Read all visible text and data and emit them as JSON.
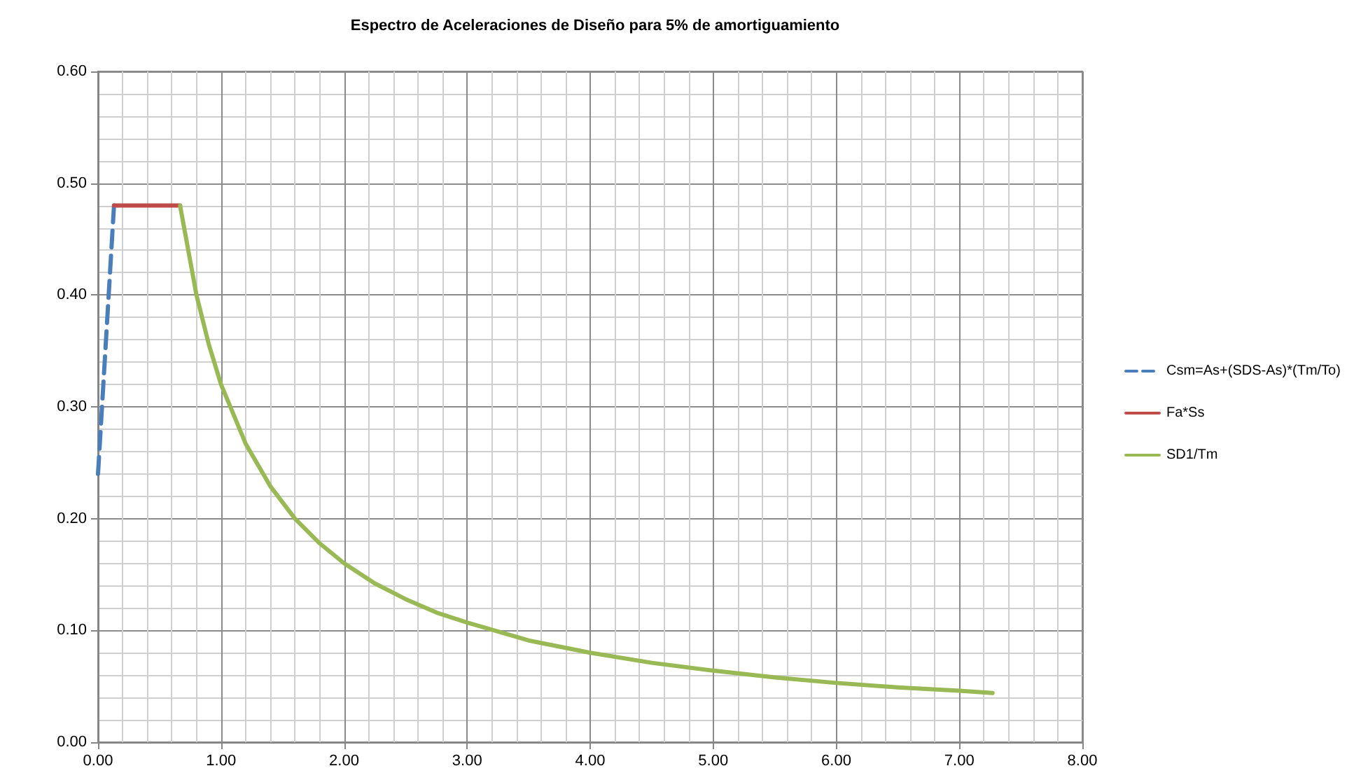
{
  "chart_data": {
    "type": "line",
    "title": "Espectro de Aceleraciones de Diseño para 5% de amortiguamiento",
    "series": [
      {
        "name": "Csm=As+(SDS-As)*(Tm/To)",
        "color": "#4a7ebb",
        "line_style": "dashed",
        "x": [
          0,
          0.13
        ],
        "values": [
          0.24,
          0.48
        ]
      },
      {
        "name": "Fa*Ss",
        "color": "#be4b48",
        "x": [
          0.13,
          0.667
        ],
        "values": [
          0.48,
          0.48
        ]
      },
      {
        "name": "SD1/Tm",
        "color": "#98b954",
        "x": [
          0.667,
          0.8,
          0.9,
          1.0,
          1.2,
          1.4,
          1.6,
          1.8,
          2.0,
          2.25,
          2.5,
          2.75,
          3.0,
          3.5,
          4.0,
          4.5,
          5.0,
          5.5,
          6.0,
          6.5,
          7.0,
          7.27
        ],
        "values": [
          0.48,
          0.4,
          0.356,
          0.32,
          0.267,
          0.229,
          0.2,
          0.178,
          0.16,
          0.142,
          0.128,
          0.116,
          0.107,
          0.091,
          0.08,
          0.071,
          0.064,
          0.058,
          0.053,
          0.049,
          0.046,
          0.044
        ]
      }
    ],
    "xlim": [
      0,
      8
    ],
    "xticks": [
      {
        "value": 0,
        "label": "0.00"
      },
      {
        "value": 1,
        "label": "1.00"
      },
      {
        "value": 2,
        "label": "2.00"
      },
      {
        "value": 3,
        "label": "3.00"
      },
      {
        "value": 4,
        "label": "4.00"
      },
      {
        "value": 5,
        "label": "5.00"
      },
      {
        "value": 6,
        "label": "6.00"
      },
      {
        "value": 7,
        "label": "7.00"
      },
      {
        "value": 8,
        "label": "8.00"
      }
    ],
    "ylim": [
      0,
      0.6
    ],
    "yticks": [
      {
        "value": 0,
        "label": "0.00"
      },
      {
        "value": 0.1,
        "label": "0.10"
      },
      {
        "value": 0.2,
        "label": "0.20"
      },
      {
        "value": 0.3,
        "label": "0.30"
      },
      {
        "value": 0.4,
        "label": "0.40"
      },
      {
        "value": 0.5,
        "label": "0.50"
      },
      {
        "value": 0.6,
        "label": "0.60"
      }
    ],
    "grid": true,
    "legend": "right",
    "marker": "none"
  }
}
